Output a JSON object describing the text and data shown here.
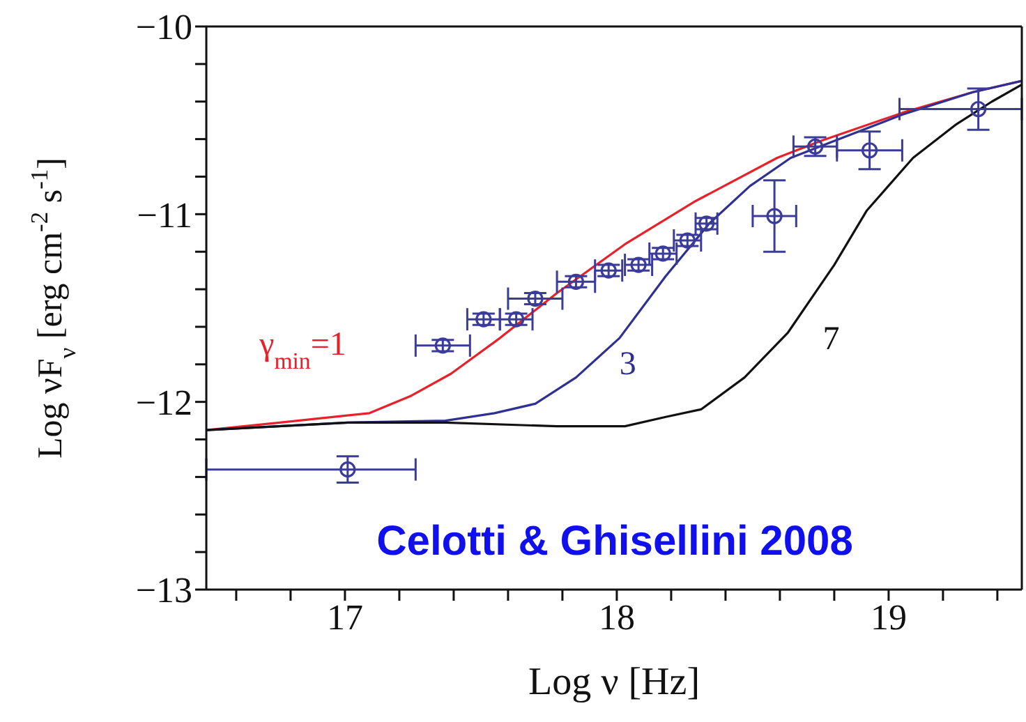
{
  "chart_data": {
    "type": "line",
    "xlabel": "Log ν [Hz]",
    "ylabel": "Log νF$_{ν}$ [erg cm$^{-2}$ s$^{-1}$]",
    "xlim": [
      16.49,
      19.49
    ],
    "ylim": [
      -13,
      -10
    ],
    "xticks": [
      {
        "value": 16.6,
        "label": null
      },
      {
        "value": 16.8,
        "label": null
      },
      17,
      {
        "value": 17.2,
        "label": null
      },
      {
        "value": 17.4,
        "label": null
      },
      {
        "value": 17.6,
        "label": null
      },
      {
        "value": 17.8,
        "label": null
      },
      18,
      {
        "value": 18.2,
        "label": null
      },
      {
        "value": 18.4,
        "label": null
      },
      {
        "value": 18.6,
        "label": null
      },
      {
        "value": 18.8,
        "label": null
      },
      19,
      {
        "value": 19.2,
        "label": null
      },
      {
        "value": 19.4,
        "label": null
      }
    ],
    "yticks": [
      -13,
      {
        "value": -12.8,
        "label": null
      },
      {
        "value": -12.6,
        "label": null
      },
      {
        "value": -12.4,
        "label": null
      },
      {
        "value": -12.2,
        "label": null
      },
      -12,
      {
        "value": -11.8,
        "label": null
      },
      {
        "value": -11.6,
        "label": null
      },
      {
        "value": -11.4,
        "label": null
      },
      {
        "value": -11.2,
        "label": null
      },
      -11,
      {
        "value": -10.8,
        "label": null
      },
      {
        "value": -10.6,
        "label": null
      },
      {
        "value": -10.4,
        "label": null
      },
      {
        "value": -10.2,
        "label": null
      },
      -10
    ],
    "grid": false,
    "legend": false,
    "line_style": "solid",
    "annotations": [
      "Celotti & Ghisellini 2008"
    ],
    "series": [
      {
        "name": "γ$_{min}$=1",
        "marker": "none",
        "color": "#e8202a",
        "x": [
          16.49,
          16.76,
          17.09,
          17.24,
          17.39,
          17.57,
          17.78,
          18.03,
          18.29,
          18.59,
          18.75,
          19.05,
          19.31,
          19.49
        ],
        "values": [
          -12.15,
          -12.11,
          -12.06,
          -11.97,
          -11.85,
          -11.66,
          -11.42,
          -11.16,
          -10.93,
          -10.7,
          -10.61,
          -10.46,
          -10.35,
          -10.29
        ]
      },
      {
        "name": "3",
        "marker": "none",
        "color": "#2e3192",
        "x": [
          16.49,
          17.01,
          17.37,
          17.55,
          17.7,
          17.85,
          18.01,
          18.18,
          18.34,
          18.49,
          18.64,
          18.8,
          19.05,
          19.31,
          19.49
        ],
        "values": [
          -12.15,
          -12.11,
          -12.1,
          -12.06,
          -12.01,
          -11.87,
          -11.66,
          -11.33,
          -11.05,
          -10.85,
          -10.7,
          -10.61,
          -10.47,
          -10.35,
          -10.29
        ]
      },
      {
        "name": "7",
        "marker": "none",
        "color": "#111111",
        "x": [
          16.49,
          17.01,
          17.37,
          17.78,
          18.03,
          18.18,
          18.31,
          18.47,
          18.63,
          18.8,
          18.92,
          19.09,
          19.25,
          19.38,
          19.49
        ],
        "values": [
          -12.15,
          -12.11,
          -12.11,
          -12.13,
          -12.13,
          -12.08,
          -12.04,
          -11.87,
          -11.63,
          -11.27,
          -10.98,
          -10.7,
          -10.52,
          -10.4,
          -10.31
        ]
      },
      {
        "type": "scatter",
        "marker": "circle",
        "color": "#3b3b9b",
        "x": [
          17.01,
          17.36,
          17.51,
          17.63,
          17.7,
          17.85,
          17.97,
          18.08,
          18.17,
          18.26,
          18.33,
          18.58,
          18.73,
          18.93,
          19.33
        ],
        "values": [
          -12.36,
          -11.7,
          -11.56,
          -11.56,
          -11.45,
          -11.36,
          -11.3,
          -11.27,
          -11.21,
          -11.14,
          -11.05,
          -11.01,
          -10.64,
          -10.66,
          -10.44
        ],
        "errors": [
          0.07,
          0.03,
          0.03,
          0.03,
          0.03,
          0.03,
          0.03,
          0.03,
          0.03,
          0.03,
          0.03,
          0.19,
          0.05,
          0.1,
          0.11
        ],
        "xerrors": [
          [
            16.49,
            17.26
          ],
          0.1,
          0.06,
          0.06,
          0.1,
          0.07,
          0.05,
          0.05,
          0.05,
          0.05,
          0.04,
          0.08,
          0.08,
          0.12,
          [
            19.04,
            19.49
          ]
        ]
      }
    ]
  }
}
